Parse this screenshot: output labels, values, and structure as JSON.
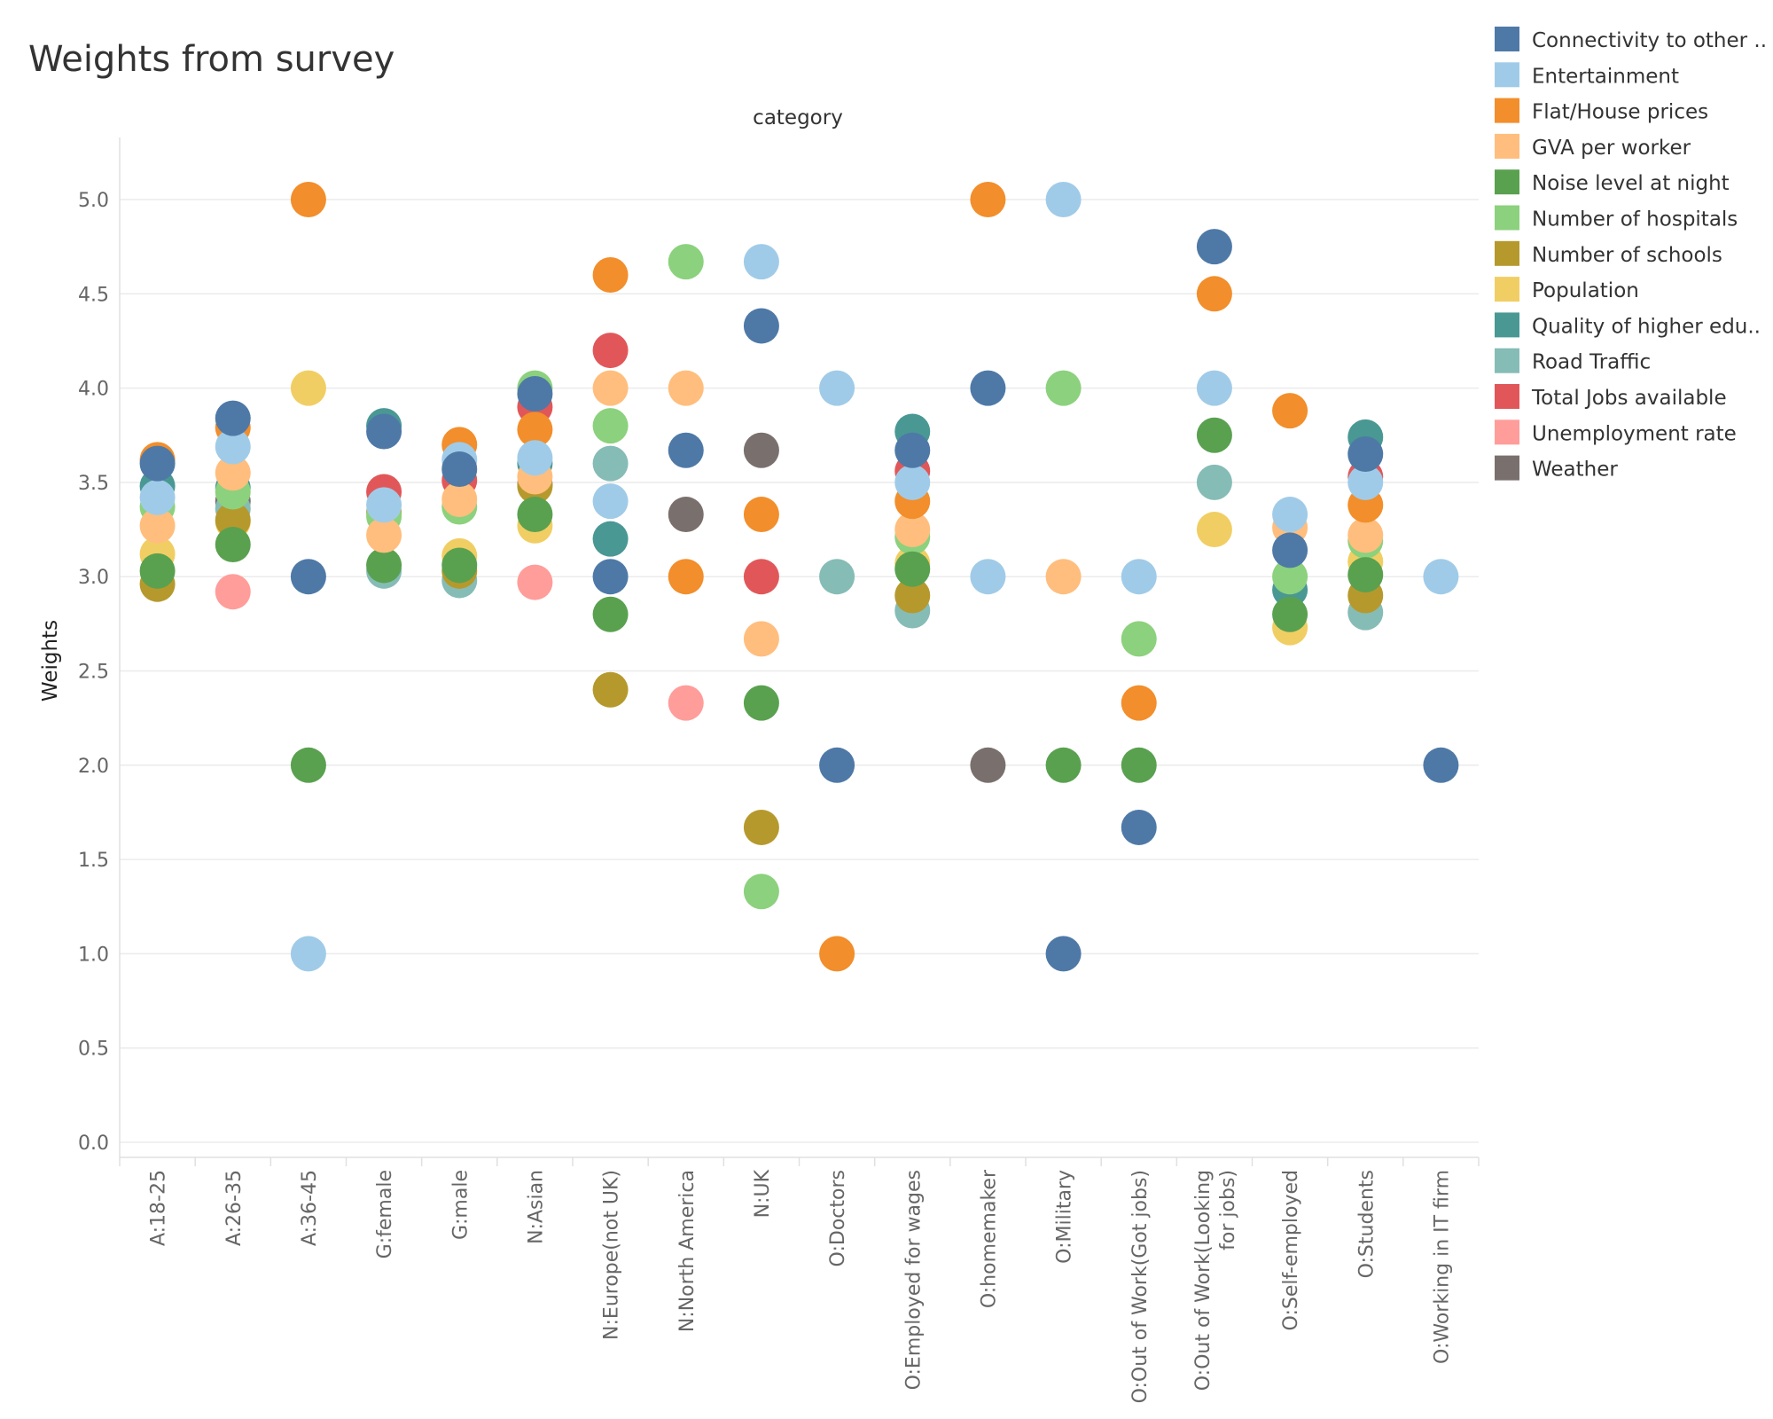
{
  "chart_data": {
    "type": "scatter",
    "title": "Weights from survey",
    "column_header": "category",
    "ylabel": "Weights",
    "ylim": [
      0,
      5.2
    ],
    "y_ticks": [
      "0.0",
      "0.5",
      "1.0",
      "1.5",
      "2.0",
      "2.5",
      "3.0",
      "3.5",
      "4.0",
      "4.5",
      "5.0"
    ],
    "grid": true,
    "legend_position": "right",
    "categories": [
      "A:18-25",
      "A:26-35",
      "A:36-45",
      "G:female",
      "G:male",
      "N:Asian",
      "N:Europe(not UK)",
      "N:North America",
      "N:UK",
      "O:Doctors",
      "O:Employed for wages",
      "O:homemaker",
      "O:Military",
      "O:Out of Work(Got jobs)",
      "O:Out of Work(Looking for jobs)",
      "O:Self-employed",
      "O:Students",
      "O:Working in IT firm"
    ],
    "category_label_lines": [
      [
        "A:18-25"
      ],
      [
        "A:26-35"
      ],
      [
        "A:36-45"
      ],
      [
        "G:female"
      ],
      [
        "G:male"
      ],
      [
        "N:Asian"
      ],
      [
        "N:Europe(not UK)"
      ],
      [
        "N:North America"
      ],
      [
        "N:UK"
      ],
      [
        "O:Doctors"
      ],
      [
        "O:Employed for wages"
      ],
      [
        "O:homemaker"
      ],
      [
        "O:Military"
      ],
      [
        "O:Out of Work(Got jobs)"
      ],
      [
        "O:Out of Work(Looking",
        "for jobs)"
      ],
      [
        "O:Self-employed"
      ],
      [
        "O:Students"
      ],
      [
        "O:Working in IT firm"
      ]
    ],
    "series": [
      {
        "name": "Connectivity to other ..",
        "color": "#4e79a7",
        "values": [
          3.6,
          3.84,
          3.0,
          3.77,
          3.57,
          3.97,
          3.0,
          3.67,
          4.33,
          2.0,
          3.67,
          4.0,
          1.0,
          1.67,
          4.75,
          3.14,
          3.65,
          2.0
        ]
      },
      {
        "name": "Entertainment",
        "color": "#a0cbe8",
        "values": [
          3.42,
          3.69,
          1.0,
          3.38,
          3.62,
          3.63,
          3.4,
          null,
          4.67,
          4.0,
          3.5,
          3.0,
          5.0,
          3.0,
          4.0,
          3.33,
          3.5,
          3.0
        ]
      },
      {
        "name": "Flat/House prices",
        "color": "#f28e2b",
        "values": [
          3.62,
          3.79,
          5.0,
          null,
          3.7,
          3.78,
          4.6,
          3.0,
          3.33,
          1.0,
          3.4,
          5.0,
          null,
          2.33,
          4.5,
          3.88,
          3.38,
          null
        ]
      },
      {
        "name": "GVA per worker",
        "color": "#ffbe7d",
        "values": [
          3.27,
          3.55,
          null,
          3.22,
          3.41,
          3.53,
          4.0,
          4.0,
          2.67,
          null,
          3.25,
          null,
          3.0,
          null,
          null,
          3.26,
          3.22,
          null
        ]
      },
      {
        "name": "Noise level at night",
        "color": "#59a14f",
        "values": [
          3.03,
          3.17,
          2.0,
          3.06,
          3.06,
          3.33,
          2.8,
          null,
          2.33,
          null,
          3.04,
          null,
          2.0,
          2.0,
          3.75,
          2.8,
          3.01,
          null
        ]
      },
      {
        "name": "Number of hospitals",
        "color": "#8cd17d",
        "values": [
          3.37,
          3.45,
          null,
          3.32,
          3.37,
          4.0,
          3.8,
          4.67,
          1.33,
          null,
          3.21,
          null,
          4.0,
          2.67,
          null,
          3.0,
          3.19,
          null
        ]
      },
      {
        "name": "Number of schools",
        "color": "#b6992d",
        "values": [
          2.96,
          3.3,
          null,
          3.34,
          3.03,
          3.48,
          2.4,
          null,
          1.67,
          null,
          2.9,
          null,
          null,
          null,
          null,
          null,
          2.9,
          null
        ]
      },
      {
        "name": "Population",
        "color": "#f1ce63",
        "values": [
          3.12,
          3.29,
          4.0,
          null,
          3.11,
          3.27,
          null,
          null,
          null,
          null,
          3.07,
          null,
          null,
          null,
          3.25,
          2.73,
          3.08,
          null
        ]
      },
      {
        "name": "Quality of higher edu..",
        "color": "#499894",
        "values": [
          3.48,
          3.47,
          null,
          3.8,
          null,
          3.6,
          3.2,
          null,
          null,
          null,
          3.77,
          null,
          null,
          null,
          null,
          2.93,
          3.74,
          null
        ]
      },
      {
        "name": "Road Traffic",
        "color": "#86bcb6",
        "values": [
          null,
          3.36,
          null,
          3.03,
          2.98,
          null,
          3.6,
          null,
          null,
          3.0,
          2.82,
          null,
          null,
          null,
          3.5,
          null,
          2.81,
          null
        ]
      },
      {
        "name": "Total Jobs available",
        "color": "#e15759",
        "values": [
          null,
          null,
          null,
          3.45,
          3.51,
          3.9,
          4.2,
          null,
          3.0,
          null,
          3.56,
          null,
          null,
          null,
          null,
          null,
          3.53,
          null
        ]
      },
      {
        "name": "Unemployment rate",
        "color": "#ff9d9a",
        "values": [
          null,
          2.92,
          null,
          null,
          null,
          2.97,
          null,
          2.33,
          null,
          null,
          null,
          null,
          null,
          null,
          null,
          null,
          null,
          null
        ]
      },
      {
        "name": "Weather",
        "color": "#79706e",
        "values": [
          null,
          3.4,
          null,
          null,
          null,
          3.49,
          null,
          3.33,
          3.67,
          null,
          null,
          2.0,
          null,
          null,
          null,
          null,
          null,
          null
        ]
      }
    ]
  }
}
